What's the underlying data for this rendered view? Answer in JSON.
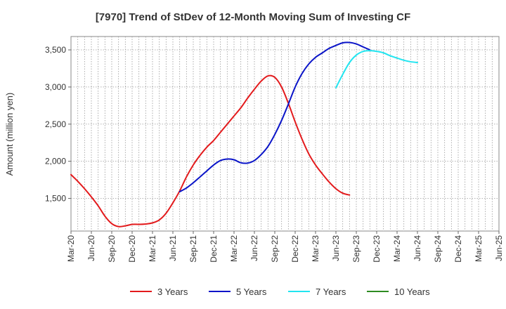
{
  "chart_data": {
    "type": "line",
    "title": "[7970]  Trend of StDev of 12-Month Moving Sum of Investing CF",
    "xlabel": "",
    "ylabel": "Amount (million yen)",
    "x_tick_labels": [
      "Mar-20",
      "Jun-20",
      "Sep-20",
      "Dec-20",
      "Mar-21",
      "Jun-21",
      "Sep-21",
      "Dec-21",
      "Mar-22",
      "Jun-22",
      "Sep-22",
      "Dec-22",
      "Mar-23",
      "Jun-23",
      "Sep-23",
      "Dec-23",
      "Mar-24",
      "Jun-24",
      "Sep-24",
      "Dec-24",
      "Mar-25",
      "Jun-25"
    ],
    "y_ticks": [
      1500,
      2000,
      2500,
      3000,
      3500
    ],
    "y_tick_labels": [
      "1,500",
      "2,000",
      "2,500",
      "3,000",
      "3,500"
    ],
    "ylim": [
      1060,
      3680
    ],
    "grid": true,
    "legend_position": "bottom",
    "series": [
      {
        "name": "3 Years",
        "color": "#e31a1c",
        "start_index": 0,
        "values": [
          1820,
          1730,
          1630,
          1520,
          1400,
          1260,
          1160,
          1120,
          1130,
          1150,
          1150,
          1155,
          1170,
          1210,
          1300,
          1440,
          1600,
          1790,
          1950,
          2080,
          2190,
          2280,
          2390,
          2500,
          2610,
          2720,
          2850,
          2970,
          3080,
          3150,
          3130,
          3000,
          2780,
          2530,
          2300,
          2100,
          1950,
          1830,
          1720,
          1630,
          1570,
          1545
        ]
      },
      {
        "name": "5 Years",
        "color": "#0a14c8",
        "start_index": 16,
        "values": [
          1590,
          1640,
          1710,
          1790,
          1870,
          1950,
          2010,
          2030,
          2020,
          1980,
          1975,
          2010,
          2090,
          2200,
          2360,
          2550,
          2770,
          3000,
          3180,
          3310,
          3400,
          3460,
          3520,
          3560,
          3595,
          3600,
          3580,
          3540,
          3500
        ]
      },
      {
        "name": "7 Years",
        "color": "#22e5f0",
        "start_index": 39,
        "values": [
          2990,
          3170,
          3330,
          3430,
          3480,
          3490,
          3480,
          3460,
          3420,
          3390,
          3360,
          3340,
          3330
        ]
      },
      {
        "name": "10 Years",
        "color": "#2e8b22",
        "start_index": 0,
        "values": []
      }
    ]
  }
}
